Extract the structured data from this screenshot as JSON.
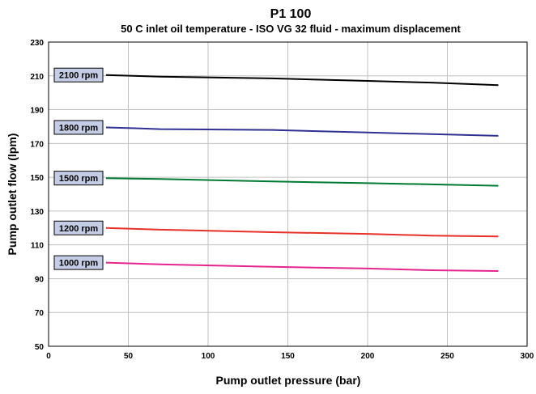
{
  "chart_data": {
    "type": "line",
    "title": "P1 100",
    "subtitle": "50 C inlet oil temperature - ISO VG 32 fluid - maximum displacement",
    "xlabel": "Pump outlet pressure (bar)",
    "ylabel": "Pump outlet flow (lpm)",
    "xlim": [
      0,
      300
    ],
    "ylim": [
      50,
      230
    ],
    "xticks": [
      "0",
      "50",
      "100",
      "150",
      "200",
      "250",
      "300"
    ],
    "yticks": [
      "50",
      "70",
      "90",
      "110",
      "130",
      "150",
      "170",
      "190",
      "210",
      "230"
    ],
    "grid": true,
    "series": [
      {
        "name": "2100 rpm",
        "color": "#000000",
        "x": [
          36,
          70,
          140,
          200,
          240,
          282
        ],
        "y": [
          210.5,
          209.5,
          208.5,
          207,
          206,
          204.5
        ]
      },
      {
        "name": "1800 rpm",
        "color": "#2e3192",
        "x": [
          36,
          54,
          70,
          140,
          200,
          240,
          282
        ],
        "y": [
          179.5,
          179,
          178.5,
          178,
          176.5,
          175.5,
          174.5
        ]
      },
      {
        "name": "1500 rpm",
        "color": "#007a33",
        "x": [
          36,
          70,
          140,
          200,
          240,
          282
        ],
        "y": [
          149.5,
          149,
          147.5,
          146.5,
          145.8,
          145
        ]
      },
      {
        "name": "1200 rpm",
        "color": "#e8302a",
        "x": [
          36,
          70,
          140,
          200,
          240,
          282
        ],
        "y": [
          120,
          119,
          117.5,
          116.5,
          115.5,
          115
        ]
      },
      {
        "name": "1000 rpm",
        "color": "#e4258f",
        "x": [
          36,
          70,
          140,
          200,
          240,
          282
        ],
        "y": [
          99.5,
          98.5,
          97,
          96,
          95,
          94.5
        ]
      }
    ]
  }
}
